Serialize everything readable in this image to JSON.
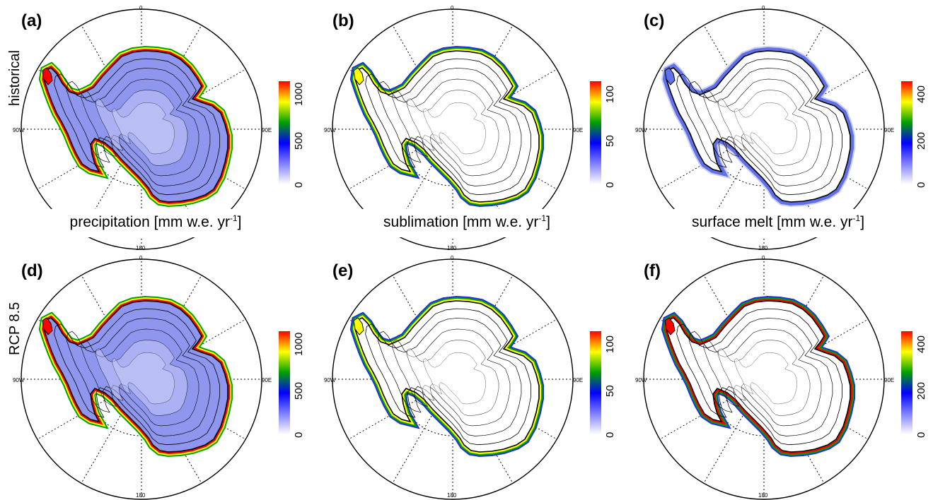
{
  "row_labels": [
    "historical",
    "RCP 8.5"
  ],
  "longitude_labels": {
    "top": "0",
    "bottom": "180",
    "left": "90W",
    "right": "90E"
  },
  "panels": [
    {
      "tag": "(a)",
      "variable": "precipitation",
      "row": "historical",
      "ticks": [
        "0",
        "500",
        "1000"
      ],
      "label_pre": "precipitation [mm w.e. yr",
      "label_sup": "-1",
      "label_post": "]",
      "intensity": "high"
    },
    {
      "tag": "(b)",
      "variable": "sublimation",
      "row": "historical",
      "ticks": [
        "0",
        "50",
        "100"
      ],
      "label_pre": "sublimation [mm w.e. yr",
      "label_sup": "-1",
      "label_post": "]",
      "intensity": "coastal"
    },
    {
      "tag": "(c)",
      "variable": "surface melt",
      "row": "historical",
      "ticks": [
        "0",
        "200",
        "400"
      ],
      "label_pre": "surface melt [mm w.e. yr",
      "label_sup": "-1",
      "label_post": "]",
      "intensity": "low"
    },
    {
      "tag": "(d)",
      "variable": "precipitation",
      "row": "RCP 8.5",
      "ticks": [
        "0",
        "500",
        "1000"
      ],
      "intensity": "high"
    },
    {
      "tag": "(e)",
      "variable": "sublimation",
      "row": "RCP 8.5",
      "ticks": [
        "0",
        "50",
        "100"
      ],
      "intensity": "coastal"
    },
    {
      "tag": "(f)",
      "variable": "surface melt",
      "row": "RCP 8.5",
      "ticks": [
        "0",
        "200",
        "400"
      ],
      "intensity": "melt"
    }
  ],
  "colors": {
    "colorbar": [
      "#ffffff",
      "#8080ff",
      "#0000ff",
      "#00a000",
      "#ffff00",
      "#ff0000"
    ]
  }
}
